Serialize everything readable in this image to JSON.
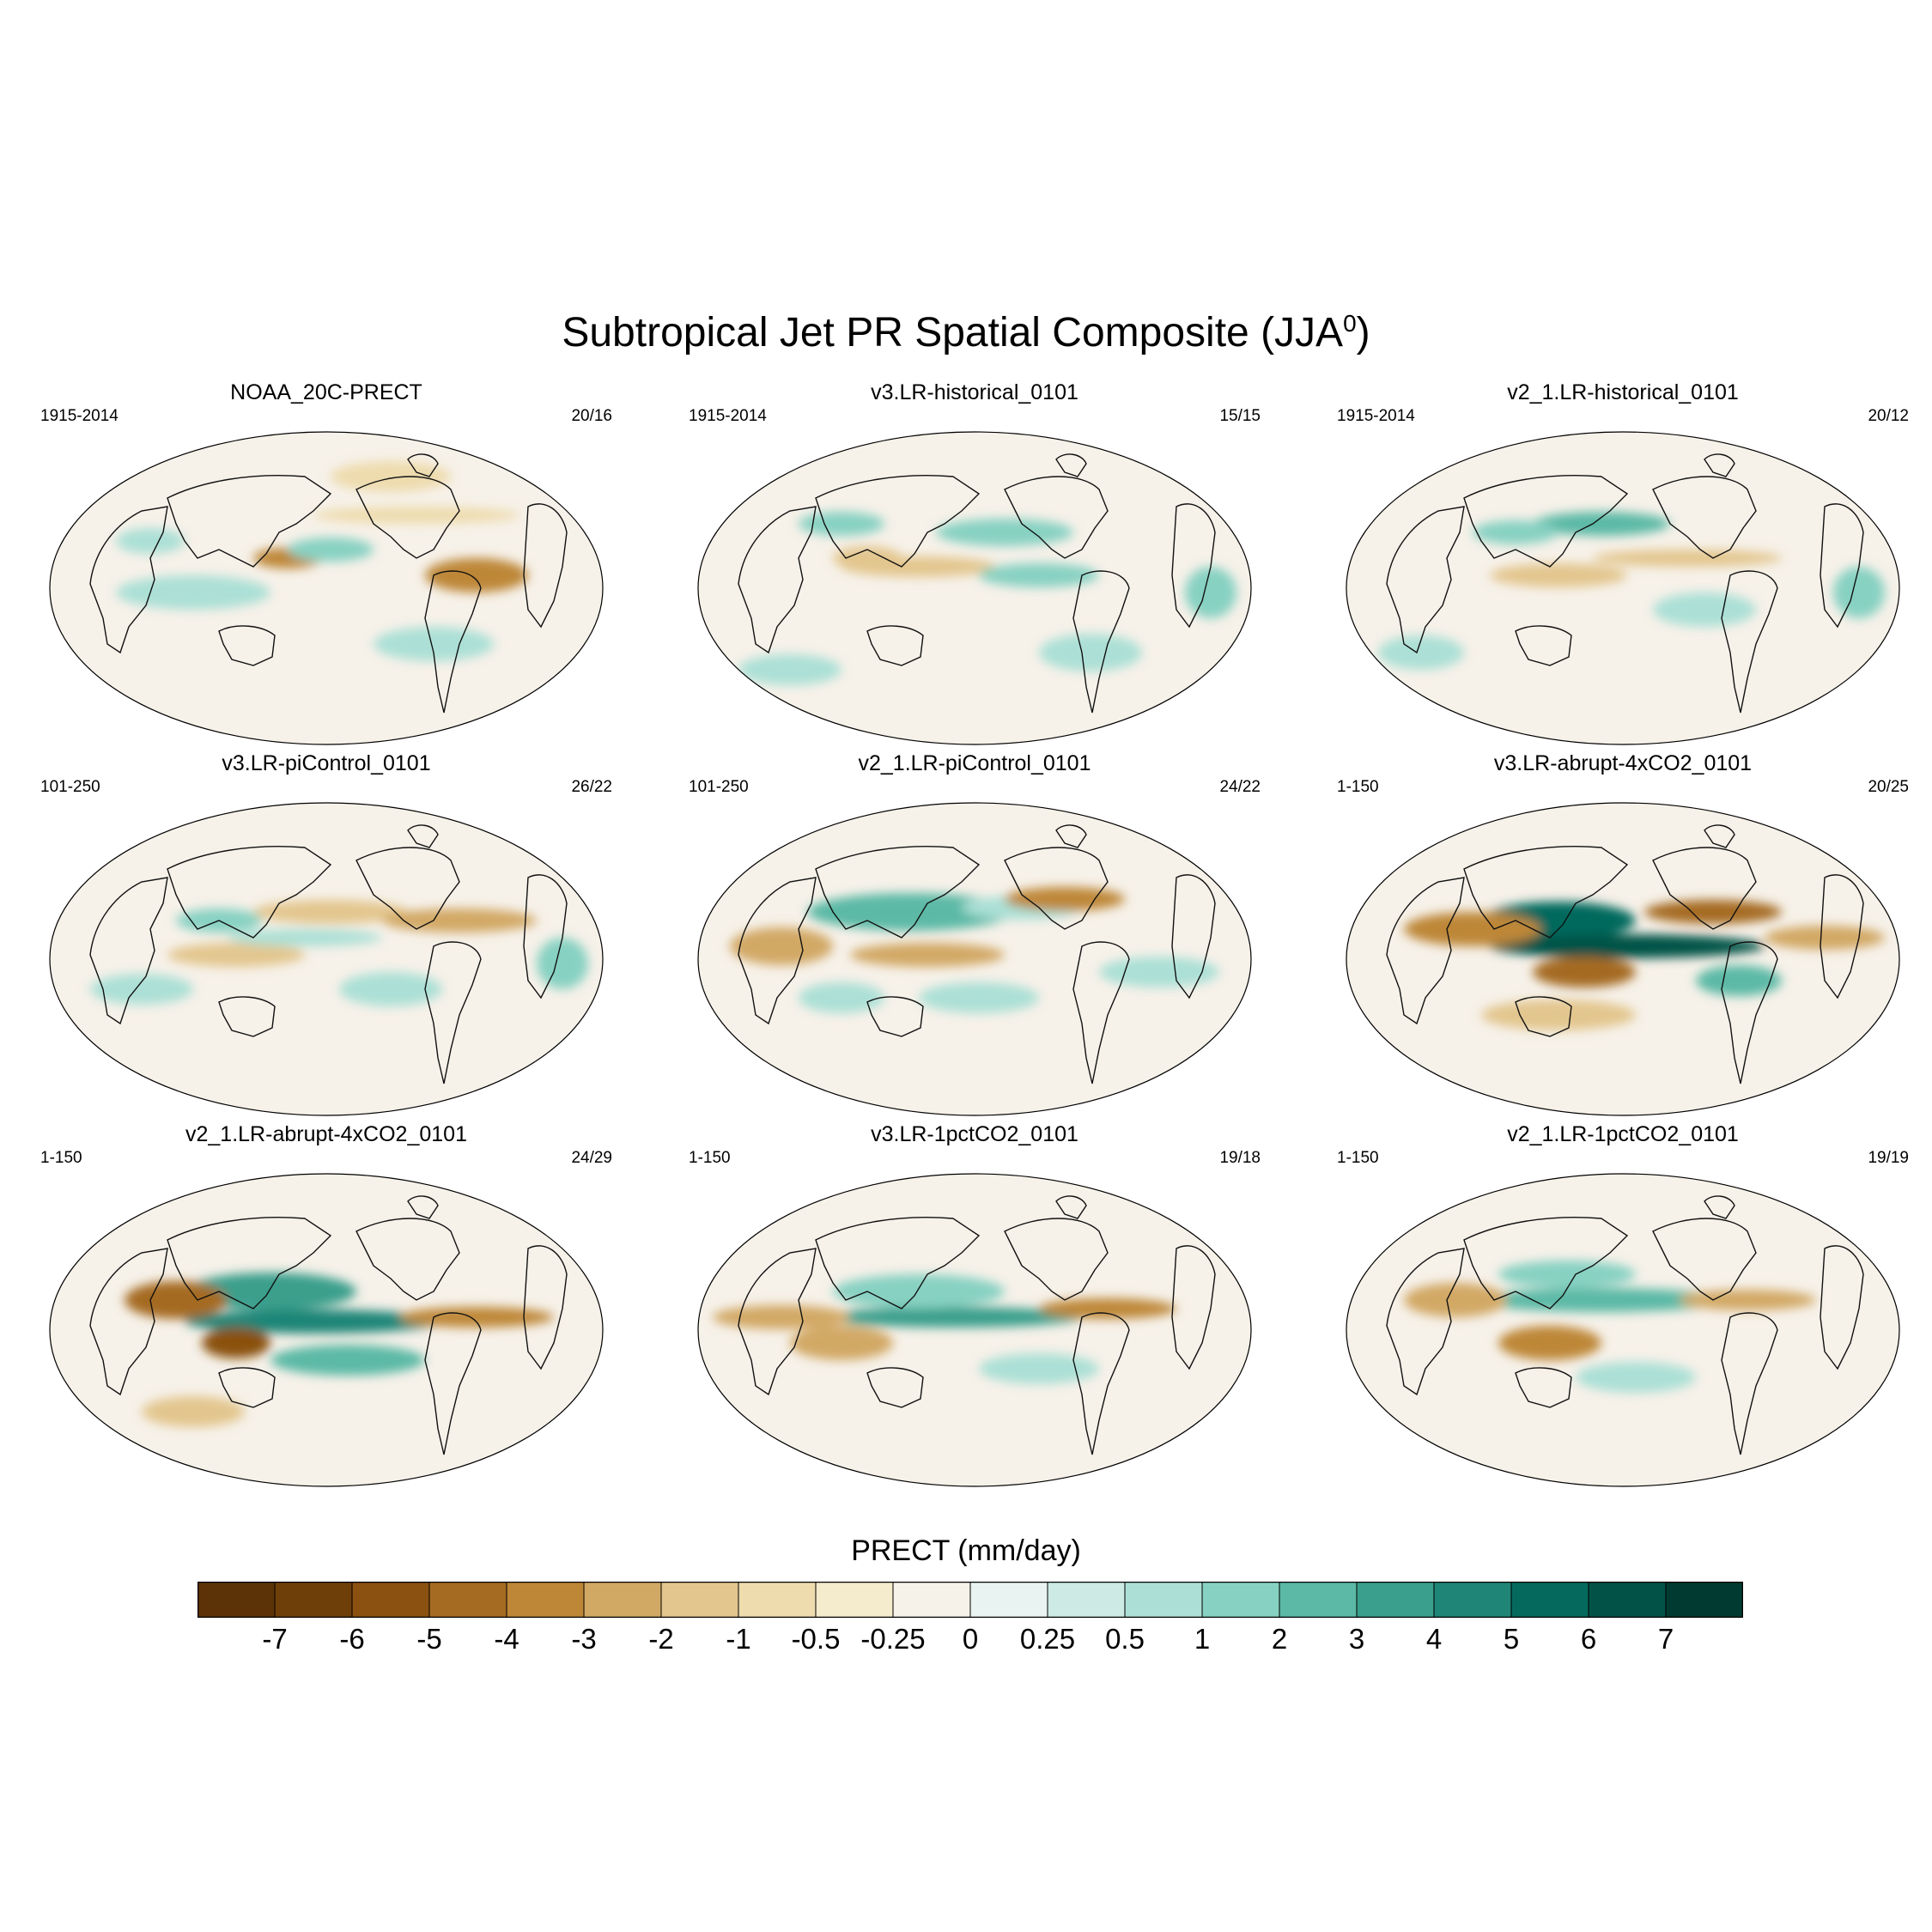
{
  "title": "Subtropical Jet PR Spatial Composite (JJA",
  "title_sup": "0",
  "title_close": ")",
  "panels": [
    {
      "name": "NOAA_20C-PRECT",
      "period": "1915-2014",
      "count": "20/16"
    },
    {
      "name": "v3.LR-historical_0101",
      "period": "1915-2014",
      "count": "15/15"
    },
    {
      "name": "v2_1.LR-historical_0101",
      "period": "1915-2014",
      "count": "20/12"
    },
    {
      "name": "v3.LR-piControl_0101",
      "period": "101-250",
      "count": "26/22"
    },
    {
      "name": "v2_1.LR-piControl_0101",
      "period": "101-250",
      "count": "24/22"
    },
    {
      "name": "v3.LR-abrupt-4xCO2_0101",
      "period": "1-150",
      "count": "20/25"
    },
    {
      "name": "v2_1.LR-abrupt-4xCO2_0101",
      "period": "1-150",
      "count": "24/29"
    },
    {
      "name": "v3.LR-1pctCO2_0101",
      "period": "1-150",
      "count": "19/18"
    },
    {
      "name": "v2_1.LR-1pctCO2_0101",
      "period": "1-150",
      "count": "19/19"
    }
  ],
  "colorbar": {
    "title": "PRECT (mm/day)",
    "labels": [
      "-7",
      "-6",
      "-5",
      "-4",
      "-3",
      "-2",
      "-1",
      "-0.5",
      "-0.25",
      "0",
      "0.25",
      "0.5",
      "1",
      "2",
      "3",
      "4",
      "5",
      "6",
      "7"
    ],
    "colors": [
      "#5c3307",
      "#6f3f09",
      "#8a5110",
      "#a56b22",
      "#be8737",
      "#d2a865",
      "#e3c68e",
      "#eedcae",
      "#f5ebcd",
      "#f6f1e9",
      "#e9f3f1",
      "#cdeae5",
      "#ace0d6",
      "#87d1c2",
      "#5bb9a6",
      "#3a9f8c",
      "#1f8577",
      "#06695d",
      "#035247",
      "#013a30"
    ]
  }
}
